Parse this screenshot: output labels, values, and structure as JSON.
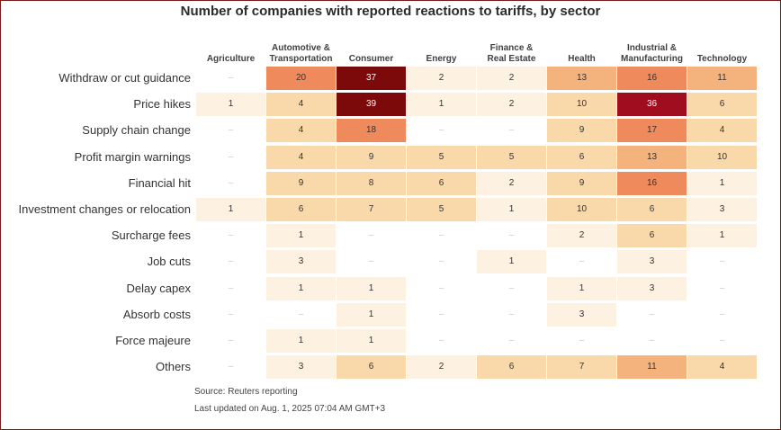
{
  "chart_data": {
    "type": "heatmap",
    "title": "Number of companies with reported reactions to tariffs, by sector",
    "columns": [
      "Agriculture",
      "Automotive &\nTransportation",
      "Consumer",
      "Energy",
      "Finance &\nReal Estate",
      "Health",
      "Industrial &\nManufacturing",
      "Technology"
    ],
    "rows": [
      "Withdraw or cut guidance",
      "Price hikes",
      "Supply chain change",
      "Profit margin warnings",
      "Financial hit",
      "Investment changes or relocation",
      "Surcharge fees",
      "Job cuts",
      "Delay capex",
      "Absorb costs",
      "Force majeure",
      "Others"
    ],
    "values": [
      [
        null,
        20,
        37,
        2,
        2,
        13,
        16,
        11
      ],
      [
        1,
        4,
        39,
        1,
        2,
        10,
        36,
        6
      ],
      [
        null,
        4,
        18,
        null,
        null,
        9,
        17,
        4
      ],
      [
        null,
        4,
        9,
        5,
        5,
        6,
        13,
        10
      ],
      [
        null,
        9,
        8,
        6,
        2,
        9,
        16,
        1
      ],
      [
        1,
        6,
        7,
        5,
        1,
        10,
        6,
        3
      ],
      [
        null,
        1,
        null,
        null,
        null,
        2,
        6,
        1
      ],
      [
        null,
        3,
        null,
        null,
        1,
        null,
        3,
        null
      ],
      [
        null,
        1,
        1,
        null,
        null,
        1,
        3,
        null
      ],
      [
        null,
        null,
        1,
        null,
        null,
        3,
        null,
        null
      ],
      [
        null,
        1,
        1,
        null,
        null,
        null,
        null,
        null
      ],
      [
        null,
        3,
        6,
        2,
        6,
        7,
        11,
        4
      ]
    ],
    "missing_symbol": "–",
    "color_scale": [
      "#fdf1e1",
      "#f9d8aa",
      "#f4b27c",
      "#ee8a5c",
      "#a00d1e",
      "#7d0a0a"
    ],
    "source": "Source: Reuters reporting",
    "updated": "Last updated on Aug. 1, 2025  07:04 AM GMT+3"
  }
}
